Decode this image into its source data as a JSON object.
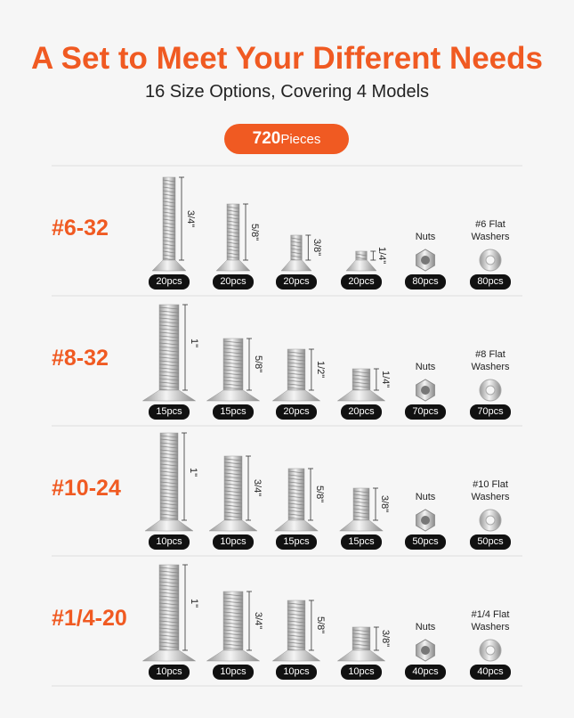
{
  "header": {
    "title": "A Set to Meet Your Different Needs",
    "subtitle": "16 Size Options, Covering 4 Models",
    "badge": {
      "count": "720",
      "unit": "Pieces"
    }
  },
  "rows": [
    {
      "model": "#6-32",
      "screws": [
        {
          "size": "3/4\"",
          "count": "20pcs"
        },
        {
          "size": "5/8\"",
          "count": "20pcs"
        },
        {
          "size": "3/8\"",
          "count": "20pcs"
        },
        {
          "size": "1/4\"",
          "count": "20pcs"
        }
      ],
      "nuts": {
        "label": "Nuts",
        "count": "80pcs"
      },
      "washers": {
        "label": "#6 Flat Washers",
        "count": "80pcs"
      }
    },
    {
      "model": "#8-32",
      "screws": [
        {
          "size": "1\"",
          "count": "15pcs"
        },
        {
          "size": "5/8\"",
          "count": "15pcs"
        },
        {
          "size": "1/2\"",
          "count": "20pcs"
        },
        {
          "size": "1/4\"",
          "count": "20pcs"
        }
      ],
      "nuts": {
        "label": "Nuts",
        "count": "70pcs"
      },
      "washers": {
        "label": "#8 Flat Washers",
        "count": "70pcs"
      }
    },
    {
      "model": "#10-24",
      "screws": [
        {
          "size": "1\"",
          "count": "10pcs"
        },
        {
          "size": "3/4\"",
          "count": "10pcs"
        },
        {
          "size": "5/8\"",
          "count": "15pcs"
        },
        {
          "size": "3/8\"",
          "count": "15pcs"
        }
      ],
      "nuts": {
        "label": "Nuts",
        "count": "50pcs"
      },
      "washers": {
        "label": "#10 Flat Washers",
        "count": "50pcs"
      }
    },
    {
      "model": "#1/4-20",
      "screws": [
        {
          "size": "1\"",
          "count": "10pcs"
        },
        {
          "size": "3/4\"",
          "count": "10pcs"
        },
        {
          "size": "5/8\"",
          "count": "10pcs"
        },
        {
          "size": "3/8\"",
          "count": "10pcs"
        }
      ],
      "nuts": {
        "label": "Nuts",
        "count": "40pcs"
      },
      "washers": {
        "label": "#1/4 Flat Washers",
        "count": "40pcs"
      }
    }
  ]
}
